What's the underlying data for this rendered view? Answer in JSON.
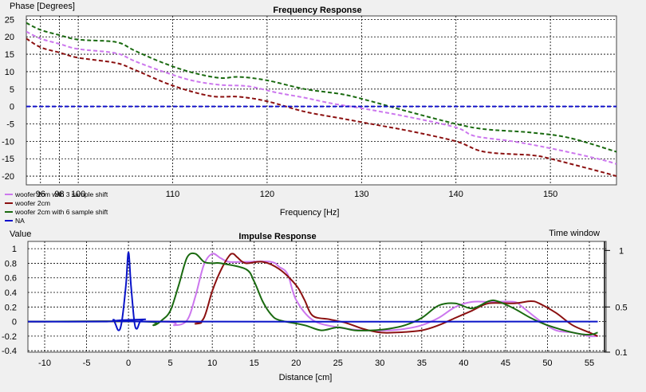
{
  "chart_data": [
    {
      "type": "line",
      "title": "Frequency Response",
      "ylabel": "Phase [Degrees]",
      "xlabel": "Frequency [Hz]",
      "xlim": [
        94.5,
        157
      ],
      "ylim": [
        -22.5,
        26
      ],
      "grid": true,
      "x_ticks": [
        96,
        98,
        100,
        110,
        120,
        130,
        140,
        150
      ],
      "x_tick_labels": [
        "96",
        "98",
        "100",
        "110",
        "120",
        "130",
        "140",
        "150"
      ],
      "y_ticks": [
        -20,
        -15,
        -10,
        -5,
        0,
        5,
        10,
        15,
        20,
        25
      ],
      "legend_position": "bottom-left",
      "series": [
        {
          "name": "woofer 2cm with 3 sample shift",
          "color": "#cc77ee",
          "style": "dashed",
          "points": [
            [
              94.5,
              21.5
            ],
            [
              96,
              19.5
            ],
            [
              98,
              18
            ],
            [
              100,
              16.5
            ],
            [
              104,
              15.3
            ],
            [
              106,
              13
            ],
            [
              109,
              10
            ],
            [
              112,
              7.5
            ],
            [
              115,
              6.2
            ],
            [
              118,
              5.8
            ],
            [
              121,
              4
            ],
            [
              124,
              2.5
            ],
            [
              127,
              0.8
            ],
            [
              130,
              -0.5
            ],
            [
              135,
              -3
            ],
            [
              140,
              -6
            ],
            [
              142,
              -8.5
            ],
            [
              146,
              -10
            ],
            [
              150,
              -12
            ],
            [
              155,
              -15
            ],
            [
              157,
              -16.5
            ]
          ]
        },
        {
          "name": "woofer 2cm",
          "color": "#8b1010",
          "style": "dashed",
          "points": [
            [
              94.5,
              19.5
            ],
            [
              96,
              17
            ],
            [
              98,
              15.5
            ],
            [
              100,
              14
            ],
            [
              104,
              12.5
            ],
            [
              106,
              10.5
            ],
            [
              110,
              6
            ],
            [
              114,
              3
            ],
            [
              117,
              2.8
            ],
            [
              120,
              1.5
            ],
            [
              124,
              -1.5
            ],
            [
              128,
              -3.5
            ],
            [
              131,
              -5
            ],
            [
              135,
              -7
            ],
            [
              140,
              -10
            ],
            [
              143,
              -13
            ],
            [
              148,
              -14
            ],
            [
              150,
              -15
            ],
            [
              155,
              -18.5
            ],
            [
              157,
              -20
            ]
          ]
        },
        {
          "name": "woofer 2cm with 6 sample shift",
          "color": "#1a6a10",
          "style": "dashed",
          "points": [
            [
              94.5,
              24
            ],
            [
              96,
              22
            ],
            [
              98,
              20.5
            ],
            [
              100,
              19.2
            ],
            [
              104,
              18.5
            ],
            [
              106,
              16
            ],
            [
              109,
              12.5
            ],
            [
              112,
              9.8
            ],
            [
              115,
              8.2
            ],
            [
              117,
              8.5
            ],
            [
              120,
              7.5
            ],
            [
              124,
              5
            ],
            [
              128,
              3.5
            ],
            [
              131,
              1.5
            ],
            [
              135,
              -1.5
            ],
            [
              140,
              -5
            ],
            [
              143,
              -6.5
            ],
            [
              148,
              -7.5
            ],
            [
              152,
              -9
            ],
            [
              157,
              -13
            ]
          ]
        },
        {
          "name": "NA",
          "color": "#1010cc",
          "style": "dashed",
          "points": [
            [
              94.5,
              0
            ],
            [
              157,
              0
            ]
          ]
        }
      ]
    },
    {
      "type": "line",
      "title": "Impulse Response",
      "ylabel": "Value",
      "xlabel": "Distance [cm]",
      "y2label": "Time window",
      "xlim": [
        -12,
        57
      ],
      "ylim": [
        -0.42,
        1.1
      ],
      "y2lim": [
        0.1,
        1.08
      ],
      "grid": true,
      "x_ticks": [
        -10,
        -5,
        0,
        5,
        10,
        15,
        20,
        25,
        30,
        35,
        40,
        45,
        50,
        55
      ],
      "y_ticks": [
        -0.4,
        -0.2,
        0,
        0.2,
        0.4,
        0.6,
        0.8,
        1
      ],
      "y_tick_labels": [
        "-0.4",
        "-0.2",
        "0",
        "0.2",
        "0.4",
        "0.6",
        "0.8",
        "1"
      ],
      "y2_ticks": [
        1,
        0.5,
        0.1
      ],
      "y2_tick_labels": [
        "1",
        "0.5",
        "0.1"
      ],
      "series": [
        {
          "name": "woofer 2cm with 3 sample shift",
          "color": "#cc77ee",
          "points": [
            [
              -12,
              0
            ],
            [
              4,
              0
            ],
            [
              5.5,
              -0.05
            ],
            [
              7,
              0.02
            ],
            [
              8,
              0.35
            ],
            [
              9,
              0.78
            ],
            [
              10,
              0.93
            ],
            [
              11,
              0.87
            ],
            [
              12,
              0.82
            ],
            [
              14,
              0.82
            ],
            [
              17,
              0.82
            ],
            [
              18,
              0.75
            ],
            [
              19,
              0.65
            ],
            [
              20,
              0.3
            ],
            [
              22,
              0.02
            ],
            [
              25,
              -0.08
            ],
            [
              28,
              -0.12
            ],
            [
              31,
              -0.12
            ],
            [
              33,
              -0.1
            ],
            [
              35,
              -0.05
            ],
            [
              37,
              0.05
            ],
            [
              39,
              0.2
            ],
            [
              41,
              0.27
            ],
            [
              43,
              0.27
            ],
            [
              46,
              0.27
            ],
            [
              47,
              0.2
            ],
            [
              49,
              0.02
            ],
            [
              51,
              -0.12
            ],
            [
              53,
              -0.15
            ],
            [
              55,
              -0.2
            ],
            [
              56,
              -0.2
            ]
          ]
        },
        {
          "name": "woofer 2cm",
          "color": "#8b1010",
          "points": [
            [
              -12,
              0
            ],
            [
              7,
              0
            ],
            [
              8,
              -0.03
            ],
            [
              9,
              0.05
            ],
            [
              10,
              0.42
            ],
            [
              11,
              0.7
            ],
            [
              12,
              0.9
            ],
            [
              12.5,
              0.93
            ],
            [
              13,
              0.88
            ],
            [
              14,
              0.8
            ],
            [
              16,
              0.82
            ],
            [
              18,
              0.72
            ],
            [
              20,
              0.5
            ],
            [
              21,
              0.3
            ],
            [
              22,
              0.08
            ],
            [
              24,
              0.03
            ],
            [
              26,
              -0.02
            ],
            [
              28,
              -0.1
            ],
            [
              30,
              -0.15
            ],
            [
              32,
              -0.15
            ],
            [
              35,
              -0.12
            ],
            [
              37,
              -0.05
            ],
            [
              39,
              0.05
            ],
            [
              41,
              0.15
            ],
            [
              43,
              0.25
            ],
            [
              46,
              0.25
            ],
            [
              48,
              0.28
            ],
            [
              49,
              0.25
            ],
            [
              51,
              0.12
            ],
            [
              53,
              -0.05
            ],
            [
              55,
              -0.15
            ],
            [
              56,
              -0.2
            ]
          ]
        },
        {
          "name": "woofer 2cm with 6 sample shift",
          "color": "#1a6a10",
          "points": [
            [
              -12,
              0
            ],
            [
              2,
              0
            ],
            [
              3,
              -0.05
            ],
            [
              4,
              0.02
            ],
            [
              5,
              0.15
            ],
            [
              6,
              0.5
            ],
            [
              7,
              0.88
            ],
            [
              8,
              0.93
            ],
            [
              9,
              0.82
            ],
            [
              10,
              0.8
            ],
            [
              11,
              0.8
            ],
            [
              14,
              0.72
            ],
            [
              15,
              0.55
            ],
            [
              16,
              0.28
            ],
            [
              17,
              0.1
            ],
            [
              18,
              0.02
            ],
            [
              21,
              -0.05
            ],
            [
              23,
              -0.12
            ],
            [
              25,
              -0.08
            ],
            [
              27,
              -0.12
            ],
            [
              29,
              -0.12
            ],
            [
              31,
              -0.1
            ],
            [
              33,
              -0.05
            ],
            [
              35,
              0.05
            ],
            [
              37,
              0.22
            ],
            [
              39,
              0.25
            ],
            [
              41,
              0.18
            ],
            [
              43,
              0.28
            ],
            [
              44,
              0.28
            ],
            [
              46,
              0.18
            ],
            [
              48,
              0.05
            ],
            [
              50,
              -0.05
            ],
            [
              53,
              -0.15
            ],
            [
              55,
              -0.18
            ],
            [
              56,
              -0.15
            ]
          ]
        },
        {
          "name": "NA",
          "color": "#0a14c8",
          "points": [
            [
              -12,
              0
            ],
            [
              -2.6,
              0
            ],
            [
              -1.8,
              0.02
            ],
            [
              -1.2,
              -0.12
            ],
            [
              -0.8,
              0
            ],
            [
              -0.3,
              0.5
            ],
            [
              0,
              0.95
            ],
            [
              0.3,
              0.5
            ],
            [
              0.7,
              0
            ],
            [
              1,
              -0.1
            ],
            [
              1.4,
              0
            ],
            [
              2,
              0.03
            ],
            [
              2.6,
              0
            ],
            [
              56,
              0
            ]
          ]
        }
      ]
    }
  ]
}
